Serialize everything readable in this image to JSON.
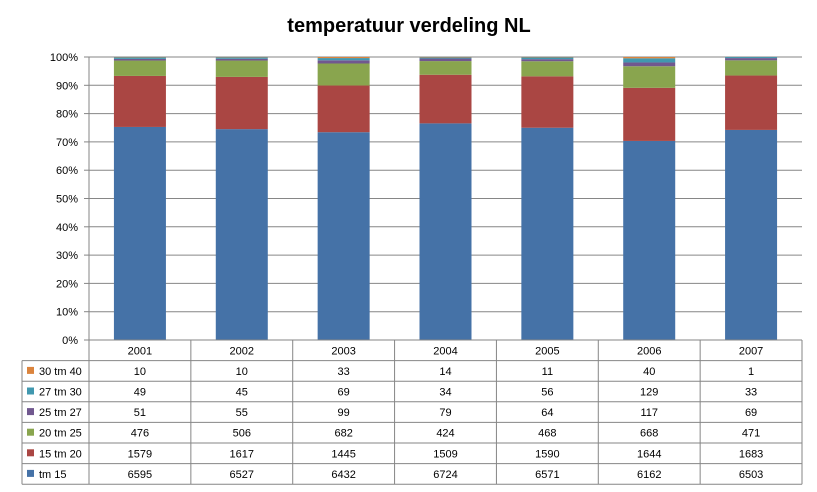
{
  "chart_data": {
    "type": "bar",
    "stacked": "percent",
    "title": "temperatuur verdeling NL",
    "categories": [
      "2001",
      "2002",
      "2003",
      "2004",
      "2005",
      "2006",
      "2007"
    ],
    "y_ticks": [
      "0%",
      "10%",
      "20%",
      "30%",
      "40%",
      "50%",
      "60%",
      "70%",
      "80%",
      "90%",
      "100%"
    ],
    "ylim": [
      0,
      100
    ],
    "grid": true,
    "legend": "data-table",
    "series": [
      {
        "name": "tm 15",
        "color": "#4572A7",
        "values": [
          6595,
          6527,
          6432,
          6724,
          6571,
          6162,
          6503
        ]
      },
      {
        "name": "15 tm 20",
        "color": "#AA4643",
        "values": [
          1579,
          1617,
          1445,
          1509,
          1590,
          1644,
          1683
        ]
      },
      {
        "name": "20 tm 25",
        "color": "#89A54E",
        "values": [
          476,
          506,
          682,
          424,
          468,
          668,
          471
        ]
      },
      {
        "name": "25 tm 27",
        "color": "#71588F",
        "values": [
          51,
          55,
          99,
          79,
          64,
          117,
          69
        ]
      },
      {
        "name": "27 tm 30",
        "color": "#4198AF",
        "values": [
          49,
          45,
          69,
          34,
          56,
          129,
          33
        ]
      },
      {
        "name": "30 tm 40",
        "color": "#DB843D",
        "values": [
          10,
          10,
          33,
          14,
          11,
          40,
          1
        ]
      }
    ]
  }
}
